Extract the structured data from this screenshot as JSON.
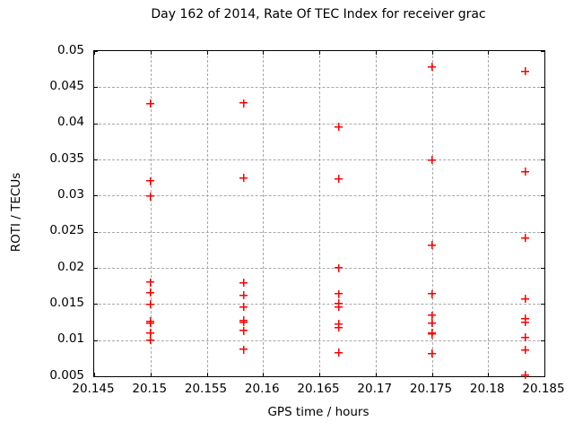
{
  "chart_data": {
    "type": "scatter",
    "title": "Day 162 of 2014, Rate Of TEC Index for receiver grac",
    "xlabel": "GPS time / hours",
    "ylabel": "ROTI / TECUs",
    "xlim": [
      20.145,
      20.185
    ],
    "ylim": [
      0.005,
      0.05
    ],
    "xticks": [
      "20.145",
      "20.15",
      "20.155",
      "20.16",
      "20.165",
      "20.17",
      "20.175",
      "20.18",
      "20.185"
    ],
    "yticks": [
      "0.005",
      "0.01",
      "0.015",
      "0.02",
      "0.025",
      "0.03",
      "0.035",
      "0.04",
      "0.045",
      "0.05"
    ],
    "grid": true,
    "legend": "none",
    "marker_shape": "plus",
    "marker_color": "#ff0000",
    "grid_color": "#a8a8a8",
    "axis_color": "#000000",
    "background_color": "#ffffff",
    "series": [
      {
        "name": "ROTI",
        "points": [
          [
            20.15,
            0.0427
          ],
          [
            20.15,
            0.032
          ],
          [
            20.15,
            0.0299
          ],
          [
            20.15,
            0.018
          ],
          [
            20.15,
            0.0166
          ],
          [
            20.15,
            0.015
          ],
          [
            20.15,
            0.0126
          ],
          [
            20.15,
            0.0124
          ],
          [
            20.15,
            0.011
          ],
          [
            20.15,
            0.01
          ],
          [
            20.1583,
            0.0428
          ],
          [
            20.1583,
            0.0324
          ],
          [
            20.1583,
            0.0179
          ],
          [
            20.1583,
            0.0162
          ],
          [
            20.1583,
            0.0146
          ],
          [
            20.1583,
            0.0127
          ],
          [
            20.1583,
            0.0125
          ],
          [
            20.1583,
            0.0113
          ],
          [
            20.1583,
            0.0087
          ],
          [
            20.1667,
            0.0395
          ],
          [
            20.1667,
            0.0323
          ],
          [
            20.1667,
            0.02
          ],
          [
            20.1667,
            0.0164
          ],
          [
            20.1667,
            0.0151
          ],
          [
            20.1667,
            0.0146
          ],
          [
            20.1667,
            0.0122
          ],
          [
            20.1667,
            0.0117
          ],
          [
            20.1667,
            0.0083
          ],
          [
            20.175,
            0.0478
          ],
          [
            20.175,
            0.0349
          ],
          [
            20.175,
            0.0231
          ],
          [
            20.175,
            0.0164
          ],
          [
            20.175,
            0.0134
          ],
          [
            20.175,
            0.0124
          ],
          [
            20.175,
            0.011
          ],
          [
            20.175,
            0.0108
          ],
          [
            20.175,
            0.0081
          ],
          [
            20.1833,
            0.0472
          ],
          [
            20.1833,
            0.0333
          ],
          [
            20.1833,
            0.0241
          ],
          [
            20.1833,
            0.0157
          ],
          [
            20.1833,
            0.013
          ],
          [
            20.1833,
            0.0125
          ],
          [
            20.1833,
            0.0104
          ],
          [
            20.1833,
            0.0086
          ],
          [
            20.1833,
            0.0052
          ]
        ]
      }
    ]
  }
}
